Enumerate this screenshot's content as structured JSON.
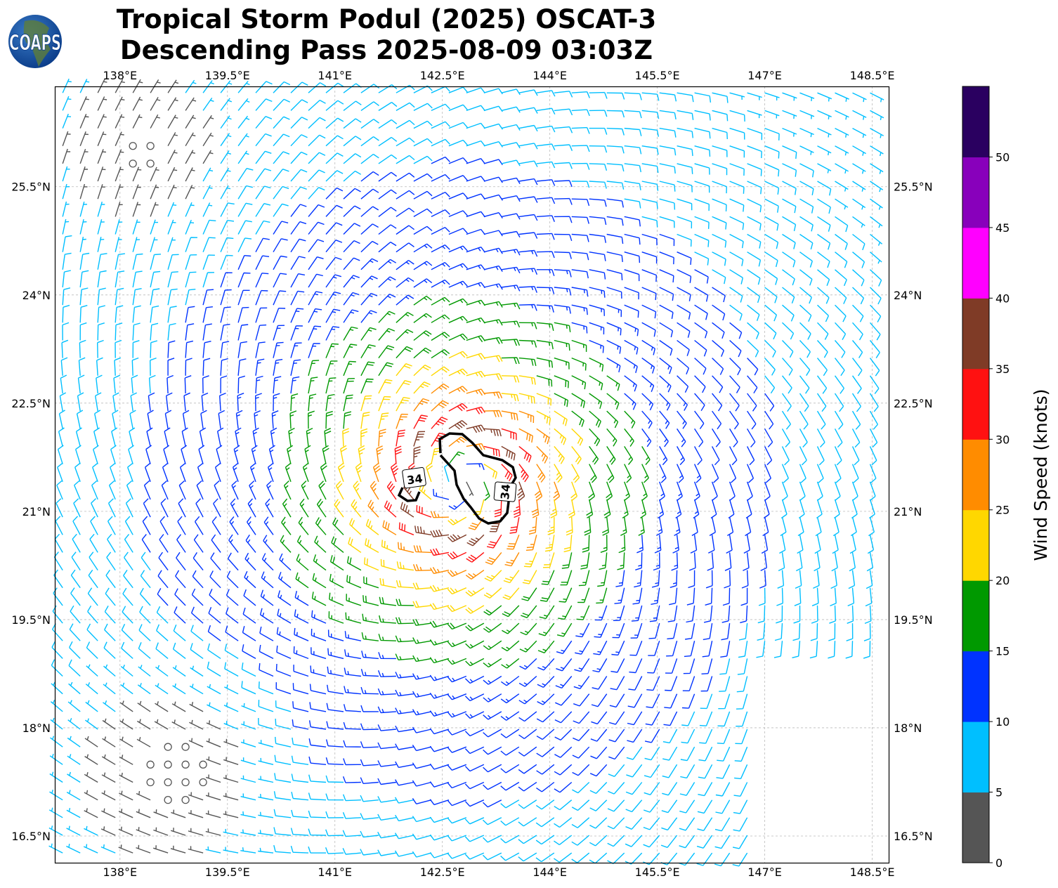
{
  "title": {
    "line1": "Tropical Storm Podul (2025) OSCAT-3",
    "line2": "Descending Pass 2025-08-09 03:03Z"
  },
  "logo": {
    "text": "COAPS"
  },
  "map": {
    "lon_ticks": [
      "138°E",
      "139.5°E",
      "141°E",
      "142.5°E",
      "144°E",
      "145.5°E",
      "147°E",
      "148.5°E"
    ],
    "lon_values": [
      138,
      139.5,
      141,
      142.5,
      144,
      145.5,
      147,
      148.5
    ],
    "lat_ticks": [
      "25.5°N",
      "24°N",
      "22.5°N",
      "21°N",
      "19.5°N",
      "18°N",
      "16.5°N"
    ],
    "lat_values": [
      25.5,
      24,
      22.5,
      21,
      19.5,
      18,
      16.5
    ],
    "lon_range": [
      137.09,
      148.74
    ],
    "lat_range": [
      16.13,
      26.89
    ],
    "contour_level_labels": [
      "34",
      "34"
    ],
    "contour_color": "#000000"
  },
  "colorbar": {
    "label": "Wind Speed (knots)",
    "ticks": [
      "0",
      "5",
      "10",
      "15",
      "20",
      "25",
      "30",
      "35",
      "40",
      "45",
      "50"
    ],
    "range": [
      0,
      55
    ],
    "colors": [
      "#555555",
      "#00bfff",
      "#0033ff",
      "#009900",
      "#ffd700",
      "#ff8c00",
      "#ff1111",
      "#7f3b26",
      "#ff00ff",
      "#8800bb",
      "#2a0060"
    ]
  }
}
